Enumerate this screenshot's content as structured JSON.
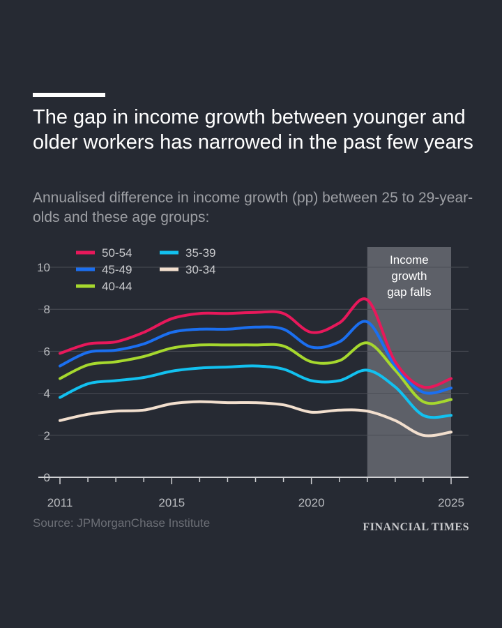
{
  "title": "The gap in income growth between younger and older workers has narrowed in the past few years",
  "subtitle": "Annualised difference in income growth (pp) between 25 to 29-year-olds and these age groups:",
  "source": "Source: JPMorganChase Institute",
  "brand": "FINANCIAL TIMES",
  "chart_data": {
    "type": "line",
    "x": [
      2011,
      2012,
      2013,
      2014,
      2015,
      2016,
      2017,
      2018,
      2019,
      2020,
      2021,
      2022,
      2023,
      2024,
      2025
    ],
    "xticks": [
      "2011",
      "2015",
      "2020",
      "2025"
    ],
    "xtick_values": [
      2011,
      2015,
      2020,
      2025
    ],
    "yticks": [
      "0",
      "2",
      "4",
      "6",
      "8",
      "10"
    ],
    "ytick_values": [
      0,
      2,
      4,
      6,
      8,
      10
    ],
    "xlim": [
      2011,
      2025
    ],
    "ylim": [
      0,
      10
    ],
    "grid": true,
    "legend_position": "top-left",
    "series": [
      {
        "name": "50-54",
        "color": "#e8185b",
        "values": [
          5.9,
          6.35,
          6.45,
          6.9,
          7.55,
          7.8,
          7.8,
          7.85,
          7.8,
          6.9,
          7.35,
          8.45,
          5.5,
          4.3,
          4.7
        ]
      },
      {
        "name": "45-49",
        "color": "#1b6ff0",
        "values": [
          5.3,
          5.95,
          6.05,
          6.35,
          6.9,
          7.05,
          7.05,
          7.15,
          7.05,
          6.2,
          6.45,
          7.4,
          5.3,
          4.05,
          4.25
        ]
      },
      {
        "name": "40-44",
        "color": "#a6d82e",
        "values": [
          4.7,
          5.35,
          5.5,
          5.75,
          6.15,
          6.3,
          6.3,
          6.3,
          6.25,
          5.5,
          5.55,
          6.4,
          5.1,
          3.6,
          3.7
        ]
      },
      {
        "name": "35-39",
        "color": "#12c1f0",
        "values": [
          3.8,
          4.45,
          4.6,
          4.75,
          5.05,
          5.2,
          5.25,
          5.3,
          5.15,
          4.6,
          4.6,
          5.1,
          4.3,
          2.95,
          2.95
        ]
      },
      {
        "name": "30-34",
        "color": "#f2dfce",
        "values": [
          2.7,
          3.0,
          3.15,
          3.2,
          3.5,
          3.6,
          3.55,
          3.55,
          3.45,
          3.1,
          3.2,
          3.15,
          2.7,
          2.0,
          2.15
        ]
      }
    ],
    "annotation": {
      "text": [
        "Income",
        "growth",
        "gap falls"
      ],
      "x_range": [
        2022,
        2025
      ]
    }
  }
}
